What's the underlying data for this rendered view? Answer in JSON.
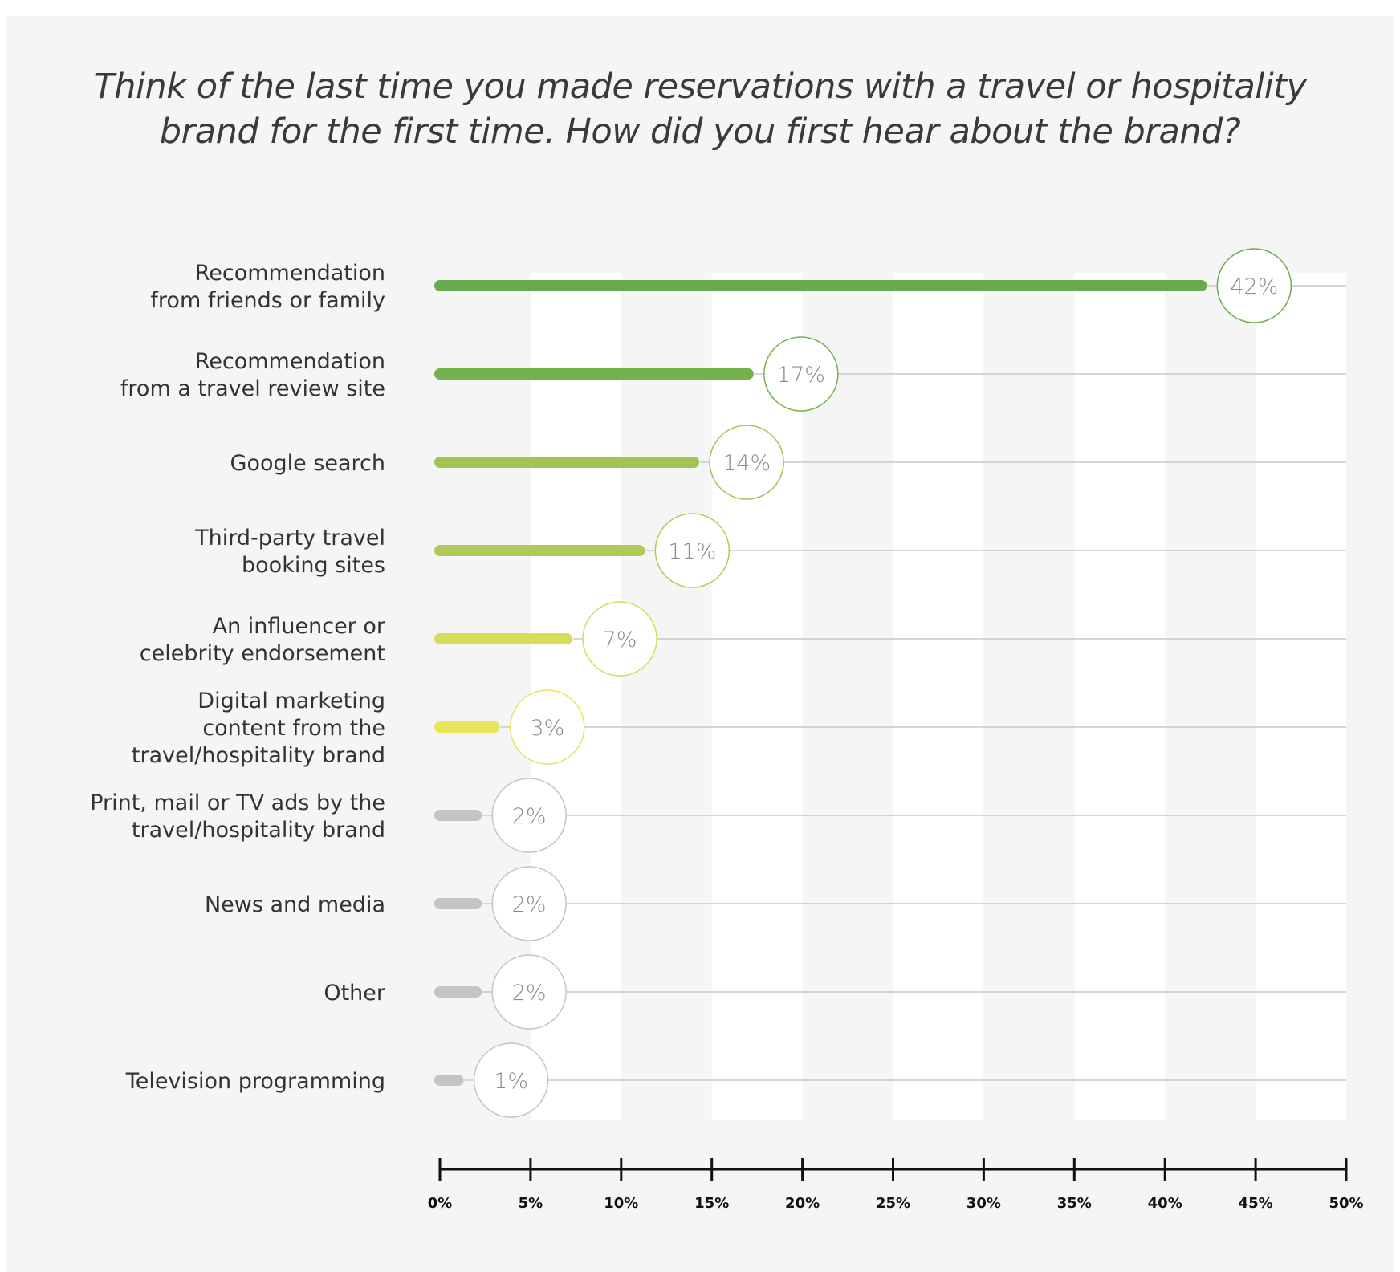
{
  "chart_data": {
    "type": "bar",
    "orientation": "horizontal",
    "title": "Think of the last time you made reservations with a travel or hospitality brand for the first time. How did you first hear about the brand?",
    "title_lines": [
      "Think of the last time you made reservations with a travel or hospitality",
      "brand for the first time. How did you first hear about the brand?"
    ],
    "xlim": [
      0,
      50
    ],
    "ticks": [
      0,
      5,
      10,
      15,
      20,
      25,
      30,
      35,
      40,
      45,
      50
    ],
    "tick_labels": [
      "0%",
      "5%",
      "10%",
      "15%",
      "20%",
      "25%",
      "30%",
      "35%",
      "40%",
      "45%",
      "50%"
    ],
    "categories": [
      {
        "lines": [
          "Recommendation",
          "from friends or family"
        ],
        "value": 42,
        "label": "42%",
        "color": "#6aaa4f"
      },
      {
        "lines": [
          "Recommendation",
          "from a travel review site"
        ],
        "value": 17,
        "label": "17%",
        "color": "#74b14e"
      },
      {
        "lines": [
          "Google search"
        ],
        "value": 14,
        "label": "14%",
        "color": "#a0c555"
      },
      {
        "lines": [
          "Third-party travel",
          "booking sites"
        ],
        "value": 11,
        "label": "11%",
        "color": "#aecb57"
      },
      {
        "lines": [
          "An influencer or",
          "celebrity endorsement"
        ],
        "value": 7,
        "label": "7%",
        "color": "#d9dc59"
      },
      {
        "lines": [
          "Digital marketing",
          "content from the",
          "travel/hospitality brand"
        ],
        "value": 3,
        "label": "3%",
        "color": "#e7e55c"
      },
      {
        "lines": [
          "Print, mail or TV ads by the",
          "travel/hospitality brand"
        ],
        "value": 2,
        "label": "2%",
        "color": "#c4c4c4"
      },
      {
        "lines": [
          "News and media"
        ],
        "value": 2,
        "label": "2%",
        "color": "#c4c4c4"
      },
      {
        "lines": [
          "Other"
        ],
        "value": 2,
        "label": "2%",
        "color": "#c4c4c4"
      },
      {
        "lines": [
          "Television programming"
        ],
        "value": 1,
        "label": "1%",
        "color": "#c4c4c4"
      }
    ],
    "grid": true
  }
}
